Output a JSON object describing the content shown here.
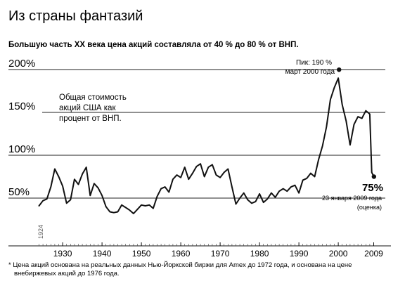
{
  "title": "Из страны фантазий",
  "subtitle": "Большую часть XX века цена акций составляла от 40 % до 80 % от ВНП.",
  "footnote_line1": "* Цена акций основана на реальных данных Нью-Йоркской биржи для Amex до 1972 года, и основана на цене",
  "footnote_line2": "внебиржевых акций до 1976 года.",
  "annotations": {
    "series_label_line1": "Общая стоимость",
    "series_label_line2": "акций США как",
    "series_label_line3": "процент от ВНП.",
    "peak_line1": "Пик: 190 %",
    "peak_line2": "март 2000 года",
    "end_value": "75%",
    "end_line1": "23 января 2009 года",
    "end_line2": "(оценка)",
    "start_year_label": "1924"
  },
  "chart_data": {
    "type": "line",
    "title": "Из страны фантазий",
    "subtitle": "Большую часть XX века цена акций составляла от 40 % до 80 % от ВНП.",
    "xlabel": "",
    "ylabel": "",
    "xlim": [
      1923,
      2010
    ],
    "ylim": [
      22,
      205
    ],
    "y_ticks": [
      {
        "value": 50,
        "label": "50%"
      },
      {
        "value": 100,
        "label": "100%"
      },
      {
        "value": 150,
        "label": "150%"
      },
      {
        "value": 200,
        "label": "200%"
      }
    ],
    "x_ticks": [
      {
        "value": 1930,
        "label": "1930"
      },
      {
        "value": 1940,
        "label": "1940"
      },
      {
        "value": 1950,
        "label": "1950"
      },
      {
        "value": 1960,
        "label": "1960"
      },
      {
        "value": 1970,
        "label": "1970"
      },
      {
        "value": 1980,
        "label": "1980"
      },
      {
        "value": 1990,
        "label": "1990"
      },
      {
        "value": 2000,
        "label": "2000"
      },
      {
        "value": 2009,
        "label": "2009"
      }
    ],
    "grid": "horizontal",
    "series": [
      {
        "points": [
          [
            1924,
            41
          ],
          [
            1925,
            47
          ],
          [
            1926,
            49
          ],
          [
            1927,
            63
          ],
          [
            1928,
            84
          ],
          [
            1929,
            75
          ],
          [
            1930,
            64
          ],
          [
            1931,
            44
          ],
          [
            1932,
            48
          ],
          [
            1933,
            72
          ],
          [
            1934,
            66
          ],
          [
            1935,
            78
          ],
          [
            1936,
            86
          ],
          [
            1937,
            53
          ],
          [
            1938,
            67
          ],
          [
            1939,
            62
          ],
          [
            1940,
            53
          ],
          [
            1941,
            40
          ],
          [
            1942,
            34
          ],
          [
            1943,
            33
          ],
          [
            1944,
            34
          ],
          [
            1945,
            42
          ],
          [
            1946,
            39
          ],
          [
            1947,
            36
          ],
          [
            1948,
            32
          ],
          [
            1949,
            37
          ],
          [
            1950,
            42
          ],
          [
            1951,
            41
          ],
          [
            1952,
            42
          ],
          [
            1953,
            38
          ],
          [
            1954,
            52
          ],
          [
            1955,
            61
          ],
          [
            1956,
            63
          ],
          [
            1957,
            57
          ],
          [
            1958,
            72
          ],
          [
            1959,
            77
          ],
          [
            1960,
            74
          ],
          [
            1961,
            86
          ],
          [
            1962,
            72
          ],
          [
            1963,
            79
          ],
          [
            1964,
            87
          ],
          [
            1965,
            90
          ],
          [
            1966,
            75
          ],
          [
            1967,
            86
          ],
          [
            1968,
            89
          ],
          [
            1969,
            77
          ],
          [
            1970,
            74
          ],
          [
            1971,
            80
          ],
          [
            1972,
            84
          ],
          [
            1973,
            63
          ],
          [
            1974,
            43
          ],
          [
            1975,
            50
          ],
          [
            1976,
            56
          ],
          [
            1977,
            48
          ],
          [
            1978,
            44
          ],
          [
            1979,
            46
          ],
          [
            1980,
            55
          ],
          [
            1981,
            45
          ],
          [
            1982,
            49
          ],
          [
            1983,
            56
          ],
          [
            1984,
            51
          ],
          [
            1985,
            58
          ],
          [
            1986,
            61
          ],
          [
            1987,
            58
          ],
          [
            1988,
            63
          ],
          [
            1989,
            65
          ],
          [
            1990,
            56
          ],
          [
            1991,
            71
          ],
          [
            1992,
            73
          ],
          [
            1993,
            79
          ],
          [
            1994,
            75
          ],
          [
            1995,
            95
          ],
          [
            1996,
            111
          ],
          [
            1997,
            133
          ],
          [
            1998,
            165
          ],
          [
            1999,
            179
          ],
          [
            2000,
            190
          ],
          [
            2001,
            159
          ],
          [
            2002,
            140
          ],
          [
            2003,
            112
          ],
          [
            2004,
            136
          ],
          [
            2005,
            145
          ],
          [
            2006,
            143
          ],
          [
            2007,
            152
          ],
          [
            2008,
            148
          ],
          [
            2008.5,
            80
          ],
          [
            2009.06,
            75
          ]
        ]
      }
    ],
    "peak_marker": {
      "x": 2000.2,
      "y": 190
    },
    "end_marker": {
      "x": 2009.06,
      "y": 75
    }
  }
}
